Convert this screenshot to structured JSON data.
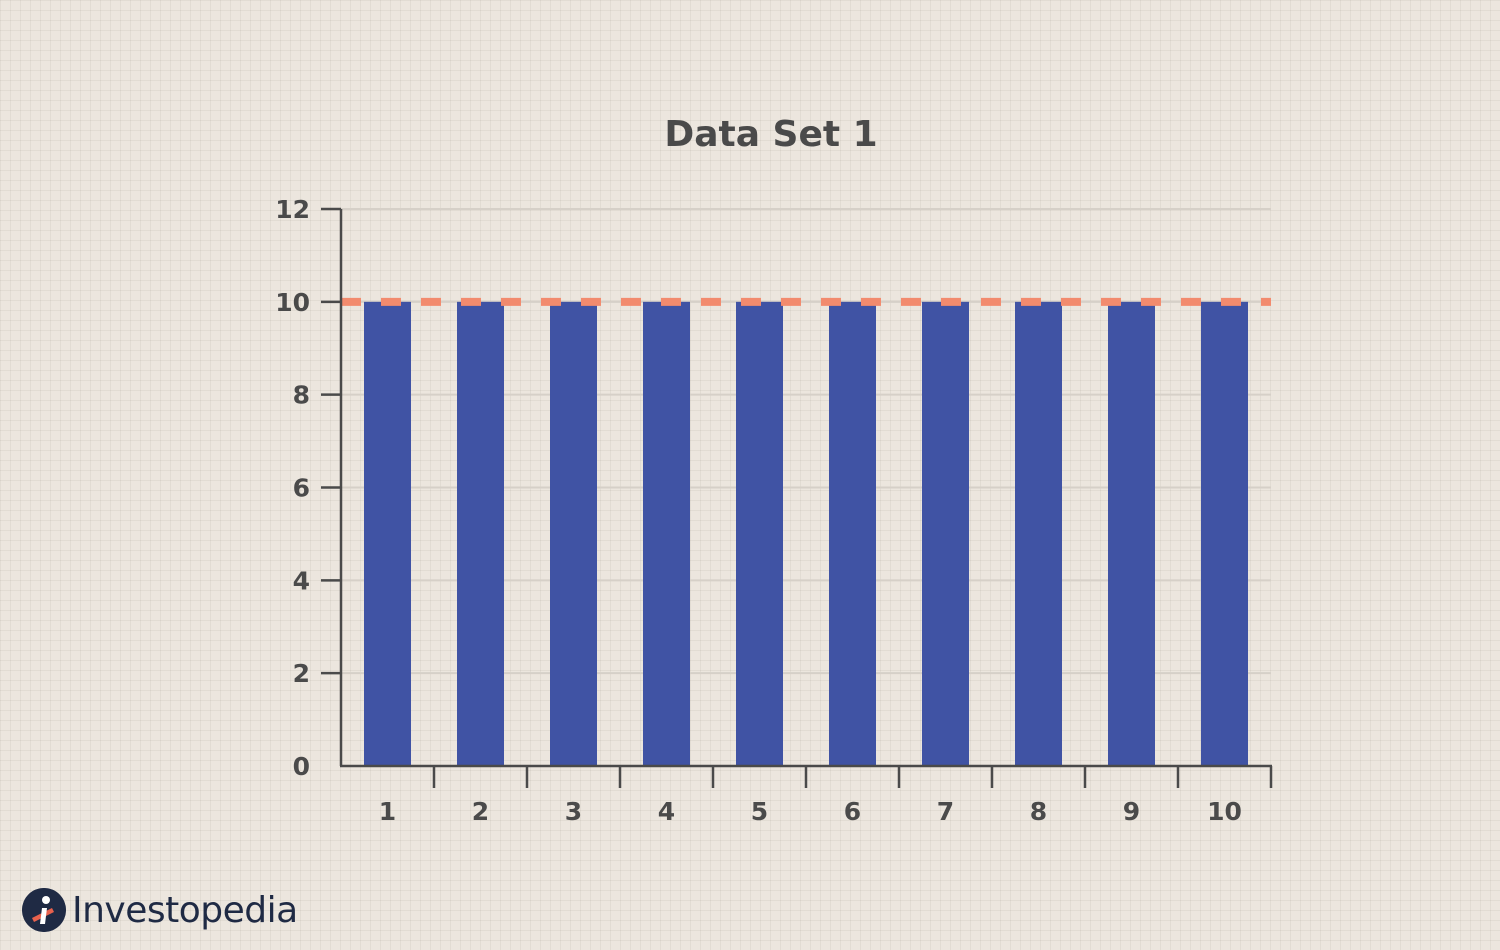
{
  "chart_data": {
    "type": "bar",
    "title": "Data Set 1",
    "categories": [
      "1",
      "2",
      "3",
      "4",
      "5",
      "6",
      "7",
      "8",
      "9",
      "10"
    ],
    "values": [
      10,
      10,
      10,
      10,
      10,
      10,
      10,
      10,
      10,
      10
    ],
    "ylim": [
      0,
      12
    ],
    "yticks": [
      0,
      2,
      4,
      6,
      8,
      10,
      12
    ],
    "reference_line": {
      "y": 10,
      "style": "dashed",
      "color": "#f28b6e"
    },
    "grid": true,
    "xlabel": "",
    "ylabel": "",
    "bar_color": "#4053a4"
  },
  "brand": {
    "name": "Investopedia",
    "color": "#1f2a44"
  }
}
